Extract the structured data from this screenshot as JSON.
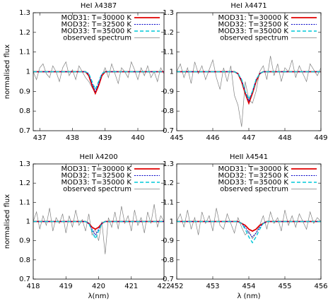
{
  "chart_data": [
    {
      "type": "line",
      "title": "HeI λ4387",
      "ylabel": "normalised flux",
      "legend": "upper right",
      "xlim": [
        436.8,
        440.8
      ],
      "xticks": [
        437,
        438,
        439,
        440
      ],
      "ylim": [
        0.7,
        1.3
      ],
      "yticks": [
        0.7,
        0.8,
        0.9,
        1,
        1.1,
        1.2,
        1.3
      ],
      "x": [
        436.8,
        436.9,
        437.0,
        437.1,
        437.2,
        437.3,
        437.4,
        437.5,
        437.6,
        437.7,
        437.8,
        437.9,
        438.0,
        438.1,
        438.2,
        438.3,
        438.4,
        438.5,
        438.6,
        438.7,
        438.8,
        438.9,
        439.0,
        439.1,
        439.2,
        439.3,
        439.4,
        439.5,
        439.6,
        439.7,
        439.8,
        439.9,
        440.0,
        440.1,
        440.2,
        440.3,
        440.4,
        440.5,
        440.6,
        440.7,
        440.8
      ],
      "series": [
        {
          "name": "MOD31: T=30000 K",
          "color": "#e00000",
          "dash": "solid",
          "values": [
            1,
            1,
            1,
            1,
            1,
            1,
            1,
            1,
            1,
            1,
            1,
            1,
            1,
            1,
            1,
            1,
            1,
            0.98,
            0.93,
            0.89,
            0.93,
            0.98,
            1,
            1,
            1,
            1,
            1,
            1,
            1,
            1,
            1,
            1,
            1,
            1,
            1,
            1,
            1,
            1,
            1,
            1,
            1
          ]
        },
        {
          "name": "MOD32: T=32500 K",
          "color": "#0000c8",
          "dash": "dotted",
          "values": [
            1,
            1,
            1,
            1,
            1,
            1,
            1,
            1,
            1,
            1,
            1,
            1,
            1,
            1,
            1,
            1,
            1,
            0.99,
            0.94,
            0.9,
            0.94,
            0.99,
            1,
            1,
            1,
            1,
            1,
            1,
            1,
            1,
            1,
            1,
            1,
            1,
            1,
            1,
            1,
            1,
            1,
            1,
            1
          ]
        },
        {
          "name": "MOD33: T=35000 K",
          "color": "#00c8d8",
          "dash": "dashed",
          "values": [
            1,
            1,
            1,
            1,
            1,
            1,
            1,
            1,
            1,
            1,
            1,
            1,
            1,
            1,
            1,
            1,
            1,
            0.99,
            0.95,
            0.91,
            0.95,
            0.99,
            1,
            1,
            1,
            1,
            1,
            1,
            1,
            1,
            1,
            1,
            1,
            1,
            1,
            1,
            1,
            1,
            1,
            1,
            1
          ]
        },
        {
          "name": "observed spectrum",
          "color": "#808080",
          "dash": "thin",
          "values": [
            1.0,
            0.96,
            1.02,
            1.04,
            0.99,
            0.97,
            1.03,
            1.0,
            0.95,
            1.02,
            1.05,
            0.98,
            1.01,
            0.96,
            1.03,
            1.0,
            0.97,
            0.95,
            0.92,
            0.89,
            0.93,
            0.98,
            1.02,
            0.97,
            1.04,
            0.99,
            0.94,
            1.02,
            1.0,
            0.97,
            1.05,
            1.01,
            0.96,
            1.02,
            0.98,
            1.03,
            0.97,
            1.0,
            0.95,
            1.02,
            0.99
          ]
        }
      ]
    },
    {
      "type": "line",
      "title": "HeI λ4471",
      "legend": "upper right",
      "xlim": [
        445,
        449
      ],
      "xticks": [
        445,
        446,
        447,
        448,
        449
      ],
      "ylim": [
        0.7,
        1.3
      ],
      "yticks": [
        0.7,
        0.8,
        0.9,
        1,
        1.1,
        1.2,
        1.3
      ],
      "x": [
        445.0,
        445.1,
        445.2,
        445.3,
        445.4,
        445.5,
        445.6,
        445.7,
        445.8,
        445.9,
        446.0,
        446.1,
        446.2,
        446.3,
        446.4,
        446.5,
        446.6,
        446.7,
        446.8,
        446.9,
        447.0,
        447.1,
        447.2,
        447.3,
        447.4,
        447.5,
        447.6,
        447.7,
        447.8,
        447.9,
        448.0,
        448.1,
        448.2,
        448.3,
        448.4,
        448.5,
        448.6,
        448.7,
        448.8,
        448.9,
        449.0
      ],
      "series": [
        {
          "name": "MOD31: T=30000 K",
          "color": "#e00000",
          "dash": "solid",
          "values": [
            1,
            1,
            1,
            1,
            1,
            1,
            1,
            1,
            1,
            1,
            1,
            1,
            1,
            1,
            1,
            1,
            1,
            0.99,
            0.95,
            0.89,
            0.84,
            0.89,
            0.95,
            0.99,
            1,
            1,
            1,
            1,
            1,
            1,
            1,
            1,
            1,
            1,
            1,
            1,
            1,
            1,
            1,
            1,
            1
          ]
        },
        {
          "name": "MOD32: T=32500 K",
          "color": "#0000c8",
          "dash": "dotted",
          "values": [
            1,
            1,
            1,
            1,
            1,
            1,
            1,
            1,
            1,
            1,
            1,
            1,
            1,
            1,
            1,
            1,
            1,
            0.99,
            0.96,
            0.9,
            0.85,
            0.9,
            0.96,
            0.99,
            1,
            1,
            1,
            1,
            1,
            1,
            1,
            1,
            1,
            1,
            1,
            1,
            1,
            1,
            1,
            1,
            1
          ]
        },
        {
          "name": "MOD33: T=35000 K",
          "color": "#00c8d8",
          "dash": "dashed",
          "values": [
            1,
            1,
            1,
            1,
            1,
            1,
            1,
            1,
            1,
            1,
            1,
            1,
            1,
            1,
            1,
            1,
            1,
            0.99,
            0.96,
            0.9,
            0.86,
            0.9,
            0.96,
            0.99,
            1,
            1,
            1,
            1,
            1,
            1,
            1,
            1,
            1,
            1,
            1,
            1,
            1,
            1,
            1,
            1,
            1
          ]
        },
        {
          "name": "observed spectrum",
          "color": "#808080",
          "dash": "thin",
          "values": [
            1.0,
            1.04,
            0.97,
            1.02,
            0.94,
            1.05,
            0.99,
            1.03,
            0.96,
            1.01,
            1.06,
            0.97,
            0.91,
            1.02,
            0.95,
            1.03,
            0.88,
            0.83,
            0.72,
            0.95,
            0.86,
            0.84,
            0.9,
            1.0,
            1.03,
            0.96,
            1.08,
            0.98,
            1.04,
            0.95,
            1.02,
            1.0,
            1.06,
            0.97,
            1.03,
            0.99,
            0.95,
            1.04,
            1.01,
            0.98,
            1.02
          ]
        }
      ]
    },
    {
      "type": "line",
      "title": "HeII λ4200",
      "ylabel": "normalised flux",
      "xlabel": "λ(nm)",
      "legend": "upper right",
      "xlim": [
        418,
        422
      ],
      "xticks": [
        418,
        419,
        420,
        421,
        422
      ],
      "ylim": [
        0.7,
        1.3
      ],
      "yticks": [
        0.7,
        0.8,
        0.9,
        1,
        1.1,
        1.2,
        1.3
      ],
      "x": [
        418.0,
        418.1,
        418.2,
        418.3,
        418.4,
        418.5,
        418.6,
        418.7,
        418.8,
        418.9,
        419.0,
        419.1,
        419.2,
        419.3,
        419.4,
        419.5,
        419.6,
        419.7,
        419.8,
        419.9,
        420.0,
        420.1,
        420.2,
        420.3,
        420.4,
        420.5,
        420.6,
        420.7,
        420.8,
        420.9,
        421.0,
        421.1,
        421.2,
        421.3,
        421.4,
        421.5,
        421.6,
        421.7,
        421.8,
        421.9,
        422.0
      ],
      "series": [
        {
          "name": "MOD31: T=30000 K",
          "color": "#e00000",
          "dash": "solid",
          "values": [
            1,
            1,
            1,
            1,
            1,
            1,
            1,
            1,
            1,
            1,
            1,
            1,
            1,
            1,
            1,
            1,
            1,
            0.99,
            0.97,
            0.96,
            0.97,
            0.99,
            1,
            1,
            1,
            1,
            1,
            1,
            1,
            1,
            1,
            1,
            1,
            1,
            1,
            1,
            1,
            1,
            1,
            1,
            1
          ]
        },
        {
          "name": "MOD32: T=32500 K",
          "color": "#0000c8",
          "dash": "dotted",
          "values": [
            1,
            1,
            1,
            1,
            1,
            1,
            1,
            1,
            1,
            1,
            1,
            1,
            1,
            1,
            1,
            1,
            1,
            0.99,
            0.96,
            0.93,
            0.96,
            0.99,
            1,
            1,
            1,
            1,
            1,
            1,
            1,
            1,
            1,
            1,
            1,
            1,
            1,
            1,
            1,
            1,
            1,
            1,
            1
          ]
        },
        {
          "name": "MOD33: T=35000 K",
          "color": "#00c8d8",
          "dash": "dashed",
          "values": [
            1,
            1,
            1,
            1,
            1,
            1,
            1,
            1,
            1,
            1,
            1,
            1,
            1,
            1,
            1,
            1,
            1,
            0.99,
            0.95,
            0.91,
            0.95,
            0.99,
            1,
            1,
            1,
            1,
            1,
            1,
            1,
            1,
            1,
            1,
            1,
            1,
            1,
            1,
            1,
            1,
            1,
            1,
            1
          ]
        },
        {
          "name": "observed spectrum",
          "color": "#808080",
          "dash": "thin",
          "values": [
            1.0,
            1.05,
            0.96,
            1.03,
            0.98,
            1.07,
            0.95,
            1.02,
            0.99,
            1.04,
            0.94,
            1.03,
            0.97,
            1.06,
            0.98,
            1.01,
            0.95,
            1.04,
            0.93,
            0.96,
            0.9,
            1.0,
            0.83,
            1.02,
            0.97,
            1.05,
            0.96,
            1.08,
            0.99,
            1.03,
            0.95,
            1.06,
            0.98,
            1.02,
            0.94,
            1.05,
            0.99,
            1.09,
            0.97,
            1.03,
            1.0
          ]
        }
      ]
    },
    {
      "type": "line",
      "title": "HeII λ4541",
      "xlabel": "λ (nm)",
      "legend": "upper right",
      "xlim": [
        452,
        456
      ],
      "xticks": [
        452,
        453,
        454,
        455,
        456
      ],
      "ylim": [
        0.7,
        1.3
      ],
      "yticks": [
        0.7,
        0.8,
        0.9,
        1,
        1.1,
        1.2,
        1.3
      ],
      "x": [
        452.0,
        452.1,
        452.2,
        452.3,
        452.4,
        452.5,
        452.6,
        452.7,
        452.8,
        452.9,
        453.0,
        453.1,
        453.2,
        453.3,
        453.4,
        453.5,
        453.6,
        453.7,
        453.8,
        453.9,
        454.0,
        454.1,
        454.2,
        454.3,
        454.4,
        454.5,
        454.6,
        454.7,
        454.8,
        454.9,
        455.0,
        455.1,
        455.2,
        455.3,
        455.4,
        455.5,
        455.6,
        455.7,
        455.8,
        455.9,
        456.0
      ],
      "series": [
        {
          "name": "MOD31: T=30000 K",
          "color": "#e00000",
          "dash": "solid",
          "values": [
            1,
            1,
            1,
            1,
            1,
            1,
            1,
            1,
            1,
            1,
            1,
            1,
            1,
            1,
            1,
            1,
            1,
            1,
            0.99,
            0.98,
            0.96,
            0.95,
            0.96,
            0.98,
            0.99,
            1,
            1,
            1,
            1,
            1,
            1,
            1,
            1,
            1,
            1,
            1,
            1,
            1,
            1,
            1,
            1
          ]
        },
        {
          "name": "MOD32: T=32500 K",
          "color": "#0000c8",
          "dash": "dotted",
          "values": [
            1,
            1,
            1,
            1,
            1,
            1,
            1,
            1,
            1,
            1,
            1,
            1,
            1,
            1,
            1,
            1,
            1,
            1,
            0.99,
            0.97,
            0.94,
            0.92,
            0.94,
            0.97,
            0.99,
            1,
            1,
            1,
            1,
            1,
            1,
            1,
            1,
            1,
            1,
            1,
            1,
            1,
            1,
            1,
            1
          ]
        },
        {
          "name": "MOD33: T=35000 K",
          "color": "#00c8d8",
          "dash": "dashed",
          "values": [
            1,
            1,
            1,
            1,
            1,
            1,
            1,
            1,
            1,
            1,
            1,
            1,
            1,
            1,
            1,
            1,
            1,
            1,
            0.99,
            0.96,
            0.92,
            0.89,
            0.92,
            0.96,
            0.99,
            1,
            1,
            1,
            1,
            1,
            1,
            1,
            1,
            1,
            1,
            1,
            1,
            1,
            1,
            1,
            1
          ]
        },
        {
          "name": "observed spectrum",
          "color": "#808080",
          "dash": "thin",
          "values": [
            1.0,
            1.04,
            0.97,
            1.06,
            0.96,
            1.02,
            0.93,
            1.05,
            0.99,
            1.03,
            0.95,
            1.07,
            0.98,
            0.96,
            1.04,
            0.99,
            0.94,
            1.02,
            0.97,
            0.93,
            0.95,
            0.91,
            0.94,
            0.98,
            1.03,
            0.96,
            1.05,
            0.99,
            1.02,
            0.95,
            1.06,
            0.98,
            1.03,
            0.97,
            1.04,
            1.0,
            0.96,
            1.05,
            0.99,
            1.02,
            1.0
          ]
        }
      ]
    }
  ]
}
